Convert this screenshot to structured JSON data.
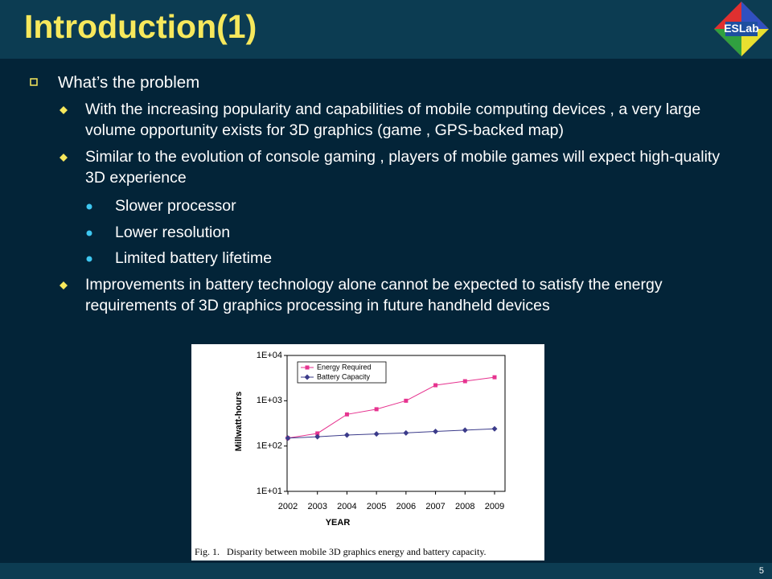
{
  "title": "Introduction(1)",
  "logo": "ESLab",
  "page_number": "5",
  "heading": "What’s the problem",
  "bullets": [
    {
      "level": 2,
      "text": "With the increasing popularity and capabilities of mobile computing devices , a very large volume opportunity exists for 3D graphics (game , GPS-backed map)"
    },
    {
      "level": 2,
      "text": "Similar to the evolution of console gaming , players of mobile games will expect high-quality 3D experience"
    },
    {
      "level": 3,
      "text": "Slower processor"
    },
    {
      "level": 3,
      "text": "Lower resolution"
    },
    {
      "level": 3,
      "text": "Limited battery lifetime"
    },
    {
      "level": 2,
      "text": "Improvements in battery technology alone cannot be expected to satisfy the energy requirements of 3D graphics processing in future handheld devices"
    }
  ],
  "chart_data": {
    "type": "line",
    "caption": "Fig. 1.   Disparity between mobile 3D graphics energy and battery capacity.",
    "x_label": "YEAR",
    "y_label": "Millwatt-hours",
    "categories": [
      "2002",
      "2003",
      "2004",
      "2005",
      "2006",
      "2007",
      "2008",
      "2009"
    ],
    "y_scale": "log",
    "ylim": [
      10,
      10000
    ],
    "yticks": [
      {
        "value": 10,
        "label": "1E+01"
      },
      {
        "value": 100,
        "label": "1E+02"
      },
      {
        "value": 1000,
        "label": "1E+03"
      },
      {
        "value": 10000,
        "label": "1E+04"
      }
    ],
    "legend": "upper left",
    "series": [
      {
        "name": "Energy Required",
        "color": "#e6338f",
        "marker": "square",
        "values": [
          150,
          190,
          500,
          650,
          1000,
          2200,
          2700,
          3300
        ]
      },
      {
        "name": "Battery Capacity",
        "color": "#3b3b8a",
        "marker": "diamond",
        "values": [
          150,
          160,
          175,
          185,
          195,
          210,
          225,
          240
        ]
      }
    ]
  }
}
